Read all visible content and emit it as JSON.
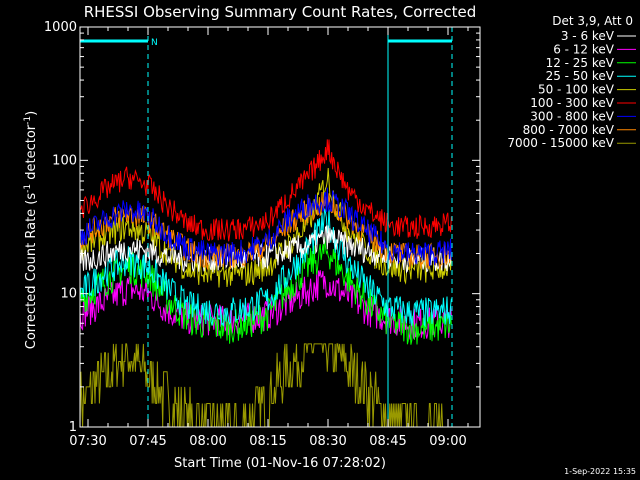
{
  "chart_data": {
    "type": "line",
    "title": "RHESSI Observing Summary Count Rates, Corrected",
    "xlabel": "Start Time (01-Nov-16 07:28:02)",
    "ylabel_main": "Corrected Count Rate (s",
    "ylabel_sup1": "-1",
    "ylabel_mid": " detector",
    "ylabel_sup2": "-1",
    "ylabel_end": ")",
    "xlim_minutes": [
      -2,
      98
    ],
    "ylim": [
      1,
      1000
    ],
    "yscale": "log",
    "x_ticks": [
      {
        "minute": 0,
        "label": "07:30"
      },
      {
        "minute": 15,
        "label": "07:45"
      },
      {
        "minute": 30,
        "label": "08:00"
      },
      {
        "minute": 45,
        "label": "08:15"
      },
      {
        "minute": 60,
        "label": "08:30"
      },
      {
        "minute": 75,
        "label": "08:45"
      },
      {
        "minute": 90,
        "label": "09:00"
      }
    ],
    "y_ticks": [
      {
        "value": 1,
        "label": "1"
      },
      {
        "value": 10,
        "label": "10"
      },
      {
        "value": 100,
        "label": "100"
      },
      {
        "value": 1000,
        "label": "1000"
      }
    ],
    "legend_header": "Det 3,9, Att 0",
    "legend_position": "top-right",
    "night_markers_minutes": [
      -2,
      15,
      75,
      91
    ],
    "flag_label": "N",
    "flag_color": "#00ffff",
    "series": [
      {
        "name": "3 - 6 keV",
        "color": "#ffffff",
        "x": [
          -2,
          5,
          10,
          15,
          20,
          25,
          30,
          35,
          40,
          45,
          50,
          55,
          58,
          60,
          62,
          65,
          70,
          75,
          80,
          85,
          91
        ],
        "y": [
          17,
          20,
          22,
          21,
          19,
          18,
          18,
          18,
          18,
          19,
          21,
          23,
          25,
          27,
          25,
          23,
          21,
          19,
          18,
          18,
          18
        ]
      },
      {
        "name": "6 - 12 keV",
        "color": "#ff00ff",
        "x": [
          -2,
          5,
          10,
          15,
          20,
          25,
          30,
          35,
          40,
          45,
          50,
          55,
          58,
          60,
          62,
          65,
          70,
          75,
          80,
          85,
          91
        ],
        "y": [
          7,
          9,
          11,
          10,
          7.5,
          6.5,
          6.3,
          6.3,
          6.5,
          7,
          8.5,
          10.5,
          12,
          12.5,
          11,
          9.5,
          7.5,
          6.5,
          6,
          6,
          6.2
        ]
      },
      {
        "name": "12 - 25 keV",
        "color": "#00ff00",
        "x": [
          -2,
          5,
          10,
          15,
          20,
          25,
          30,
          35,
          40,
          45,
          50,
          55,
          58,
          60,
          62,
          65,
          70,
          75,
          80,
          85,
          91
        ],
        "y": [
          9,
          13,
          16,
          14,
          9,
          6.5,
          5.8,
          5.6,
          6,
          7,
          11,
          16,
          19,
          21,
          17,
          13,
          8.5,
          6.2,
          5.5,
          5.5,
          5.8
        ]
      },
      {
        "name": "25 - 50 keV",
        "color": "#00ffff",
        "x": [
          -2,
          5,
          10,
          15,
          20,
          25,
          30,
          35,
          40,
          45,
          50,
          55,
          58,
          60,
          62,
          65,
          70,
          75,
          80,
          85,
          91
        ],
        "y": [
          10,
          15,
          18,
          16,
          11,
          8,
          7.5,
          7.3,
          7.8,
          9,
          14,
          22,
          30,
          36,
          25,
          17,
          11,
          8,
          7.2,
          7.2,
          7.5
        ]
      },
      {
        "name": "50 - 100 keV",
        "color": "#cccc00",
        "x": [
          -2,
          5,
          10,
          15,
          20,
          25,
          30,
          35,
          40,
          45,
          50,
          55,
          58,
          60,
          62,
          65,
          70,
          75,
          80,
          85,
          91
        ],
        "y": [
          22,
          28,
          32,
          28,
          20,
          15,
          14,
          14,
          14,
          16,
          23,
          33,
          55,
          75,
          45,
          30,
          21,
          16,
          15,
          15,
          16
        ]
      },
      {
        "name": "100 - 300 keV",
        "color": "#ff0000",
        "x": [
          -2,
          5,
          10,
          15,
          20,
          25,
          30,
          35,
          40,
          45,
          50,
          55,
          58,
          60,
          62,
          65,
          70,
          75,
          80,
          85,
          91
        ],
        "y": [
          42,
          62,
          75,
          65,
          45,
          33,
          30,
          30,
          31,
          35,
          52,
          75,
          100,
          125,
          90,
          60,
          42,
          33,
          31,
          32,
          34
        ]
      },
      {
        "name": "300 - 800 keV",
        "color": "#0000ff",
        "x": [
          -2,
          5,
          10,
          15,
          20,
          25,
          30,
          35,
          40,
          45,
          50,
          55,
          58,
          60,
          62,
          65,
          70,
          75,
          80,
          85,
          91
        ],
        "y": [
          27,
          37,
          43,
          38,
          28,
          22,
          20,
          20,
          21,
          25,
          36,
          46,
          50,
          51,
          47,
          40,
          29,
          22,
          20,
          20,
          21
        ]
      },
      {
        "name": "800 - 7000 keV",
        "color": "#ff8800",
        "x": [
          -2,
          5,
          10,
          15,
          20,
          25,
          30,
          35,
          40,
          45,
          50,
          55,
          58,
          60,
          62,
          65,
          70,
          75,
          80,
          85,
          91
        ],
        "y": [
          26,
          35,
          40,
          36,
          27,
          21,
          19,
          19,
          20,
          23,
          33,
          42,
          46,
          48,
          44,
          37,
          27,
          21,
          19,
          19,
          20
        ]
      },
      {
        "name": "7000 - 15000 keV",
        "color": "#999900",
        "x": [
          -2,
          0,
          5,
          10,
          15,
          20,
          25,
          30,
          35,
          40,
          45,
          50,
          55,
          58,
          60,
          62,
          65,
          70,
          75,
          80,
          85,
          91
        ],
        "y": [
          1.5,
          1.8,
          2.6,
          3.6,
          2.4,
          1.6,
          1.1,
          1,
          1,
          1.1,
          1.6,
          2.8,
          3.8,
          4.2,
          4,
          3.6,
          2.8,
          1.8,
          1.1,
          1,
          1,
          1
        ]
      }
    ]
  },
  "footer": {
    "date_stamp": "1-Sep-2022 15:35"
  }
}
